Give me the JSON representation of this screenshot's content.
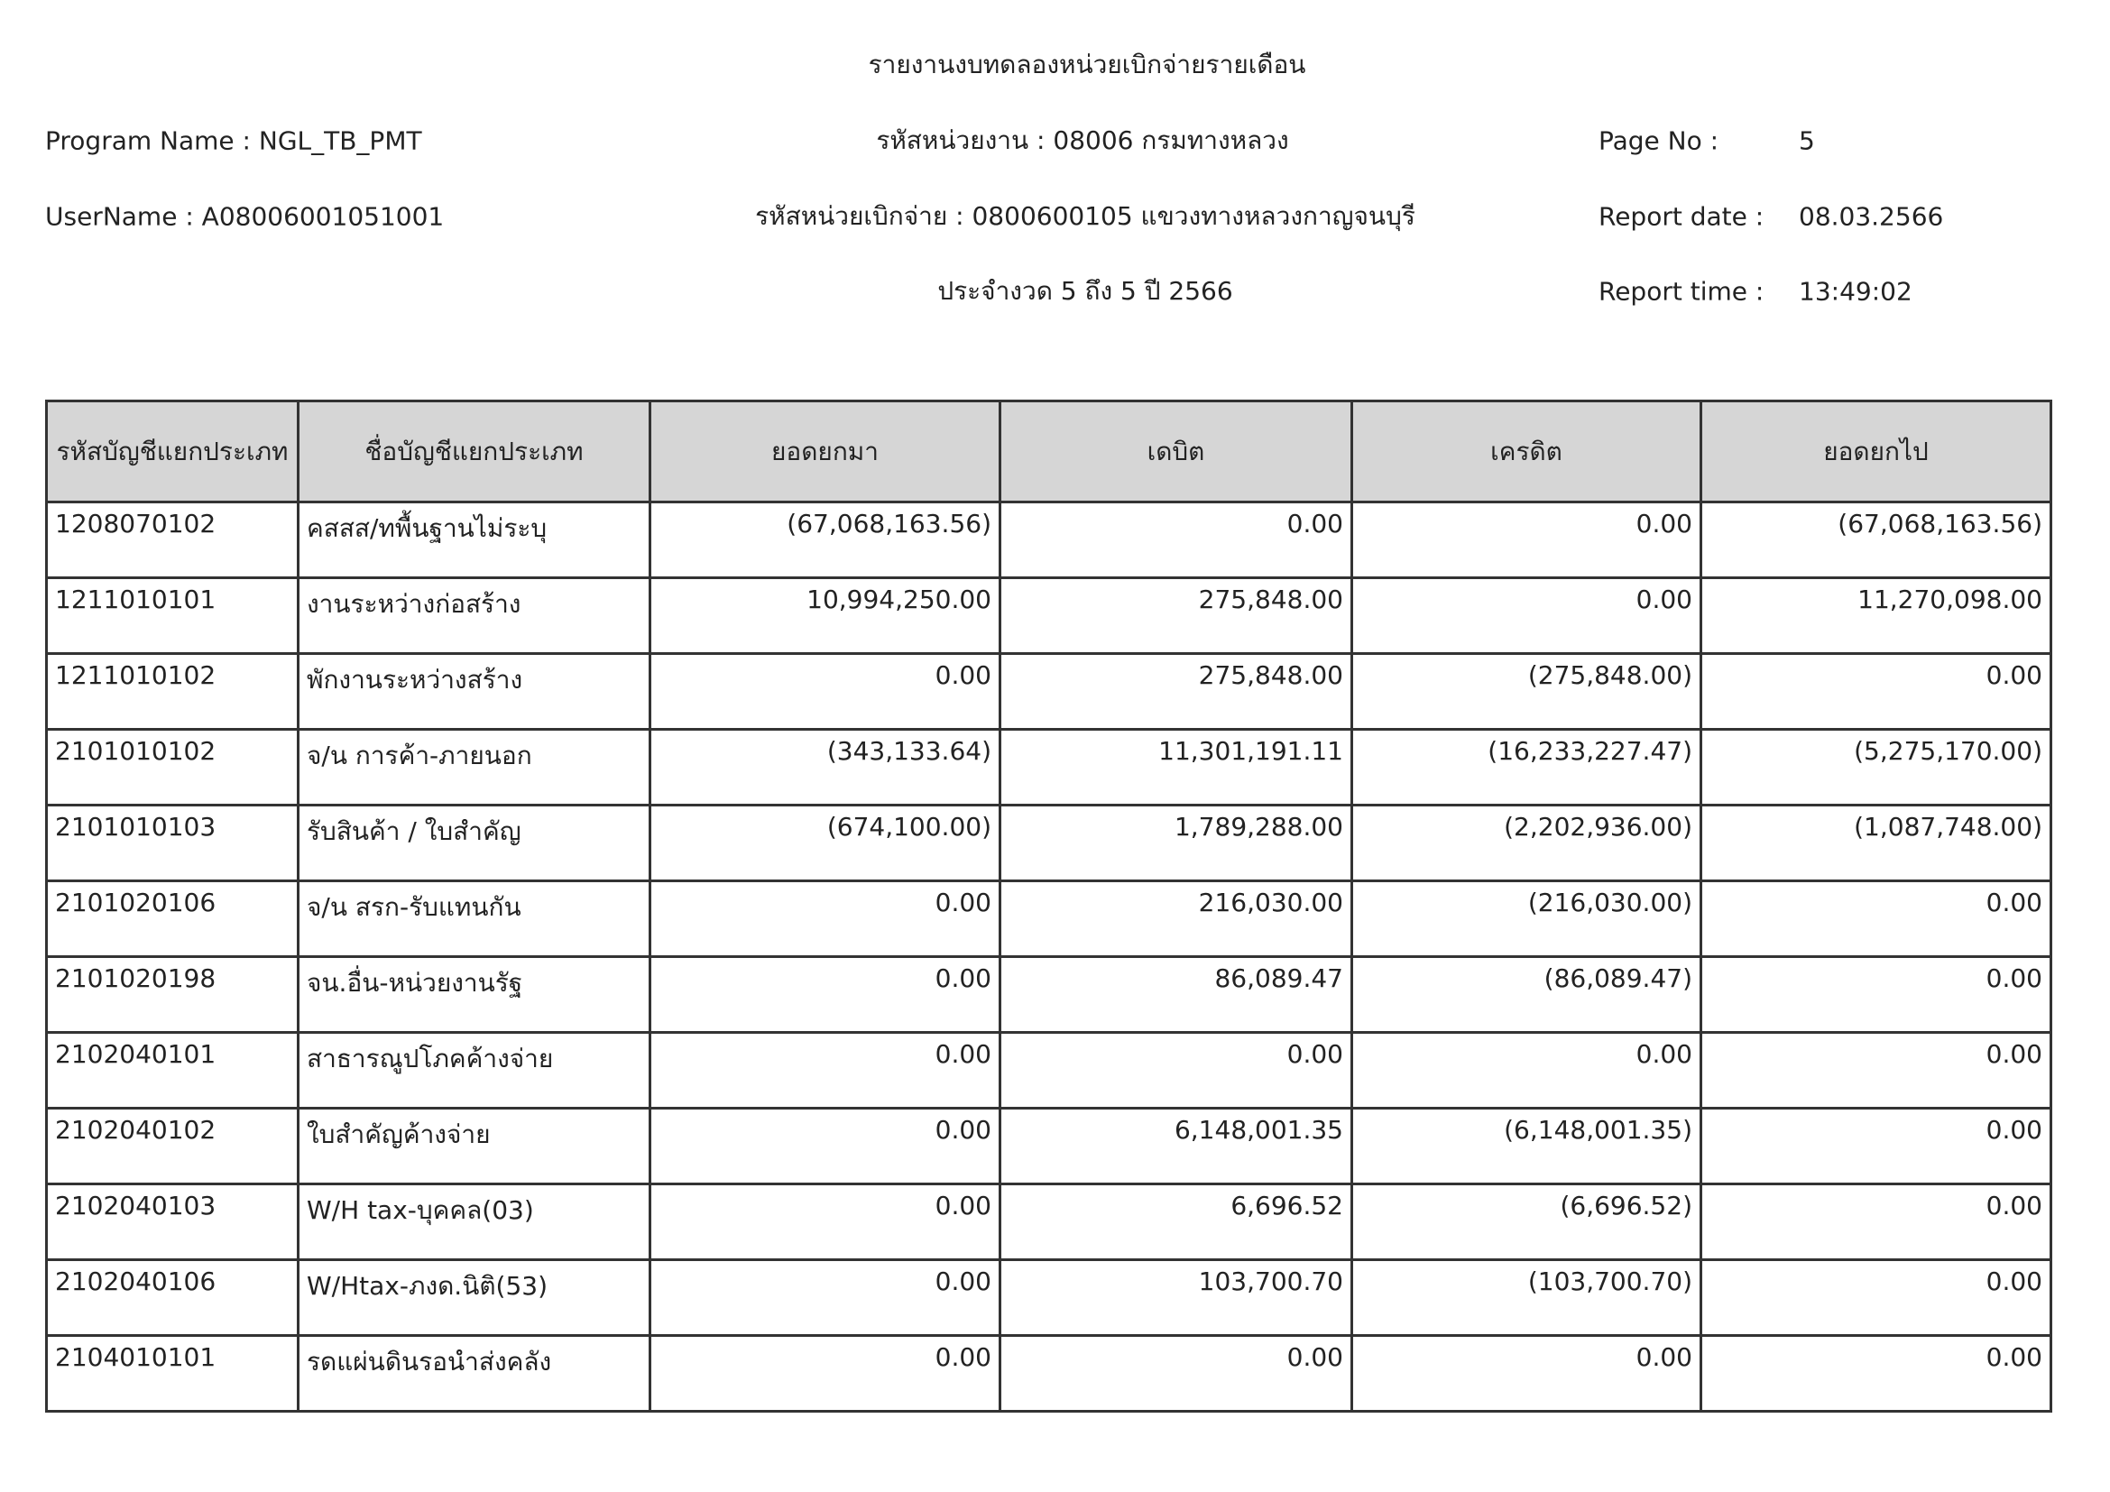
{
  "header": {
    "title": "รายงานงบทดลองหน่วยเบิกจ่ายรายเดือน",
    "program_name": "Program Name : NGL_TB_PMT",
    "department": "รหัสหน่วยงาน : 08006 กรมทางหลวง",
    "page_label": "Page No :",
    "page_no": "5",
    "username": "UserName : A08006001051001",
    "disbursing_unit": "รหัสหน่วยเบิกจ่าย : 0800600105 แขวงทางหลวงกาญจนบุรี",
    "report_date_label": "Report date :",
    "report_date": "08.03.2566",
    "period": "ประจำงวด 5 ถึง 5 ปี 2566",
    "report_time_label": "Report time :",
    "report_time": "13:49:02"
  },
  "table": {
    "columns": [
      "รหัสบัญชีแยกประเภท",
      "ชื่อบัญชีแยกประเภท",
      "ยอดยกมา",
      "เดบิต",
      "เครดิต",
      "ยอดยกไป"
    ],
    "rows": [
      [
        "1208070102",
        "คสสส/ทพื้นฐานไม่ระบุ",
        "(67,068,163.56)",
        "0.00",
        "0.00",
        "(67,068,163.56)"
      ],
      [
        "1211010101",
        "งานระหว่างก่อสร้าง",
        "10,994,250.00",
        "275,848.00",
        "0.00",
        "11,270,098.00"
      ],
      [
        "1211010102",
        "พักงานระหว่างสร้าง",
        "0.00",
        "275,848.00",
        "(275,848.00)",
        "0.00"
      ],
      [
        "2101010102",
        "จ/น การค้า-ภายนอก",
        "(343,133.64)",
        "11,301,191.11",
        "(16,233,227.47)",
        "(5,275,170.00)"
      ],
      [
        "2101010103",
        "รับสินค้า / ใบสำคัญ",
        "(674,100.00)",
        "1,789,288.00",
        "(2,202,936.00)",
        "(1,087,748.00)"
      ],
      [
        "2101020106",
        "จ/น สรก-รับแทนกัน",
        "0.00",
        "216,030.00",
        "(216,030.00)",
        "0.00"
      ],
      [
        "2101020198",
        "จน.อื่น-หน่วยงานรัฐ",
        "0.00",
        "86,089.47",
        "(86,089.47)",
        "0.00"
      ],
      [
        "2102040101",
        "สาธารณูปโภคค้างจ่าย",
        "0.00",
        "0.00",
        "0.00",
        "0.00"
      ],
      [
        "2102040102",
        "ใบสำคัญค้างจ่าย",
        "0.00",
        "6,148,001.35",
        "(6,148,001.35)",
        "0.00"
      ],
      [
        "2102040103",
        "W/H tax-บุคคล(03)",
        "0.00",
        "6,696.52",
        "(6,696.52)",
        "0.00"
      ],
      [
        "2102040106",
        "W/Htax-ภงด.นิติ(53)",
        "0.00",
        "103,700.70",
        "(103,700.70)",
        "0.00"
      ],
      [
        "2104010101",
        "รดแผ่นดินรอนำส่งคลัง",
        "0.00",
        "0.00",
        "0.00",
        "0.00"
      ]
    ]
  }
}
